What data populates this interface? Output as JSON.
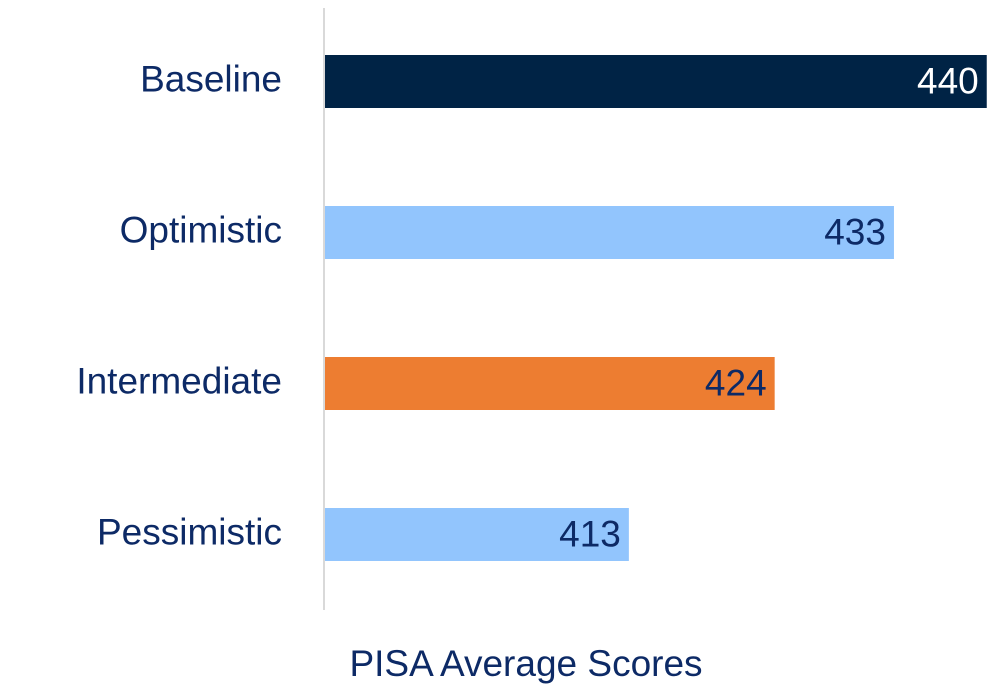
{
  "chart_data": {
    "type": "bar",
    "orientation": "horizontal",
    "categories": [
      "Baseline",
      "Optimistic",
      "Intermediate",
      "Pessimistic"
    ],
    "values": [
      440,
      433,
      424,
      413
    ],
    "colors": [
      "#002345",
      "#92c5fd",
      "#ed7d31",
      "#92c5fd"
    ],
    "xlim": [
      390,
      441
    ],
    "xlabel": "PISA Average Scores"
  }
}
